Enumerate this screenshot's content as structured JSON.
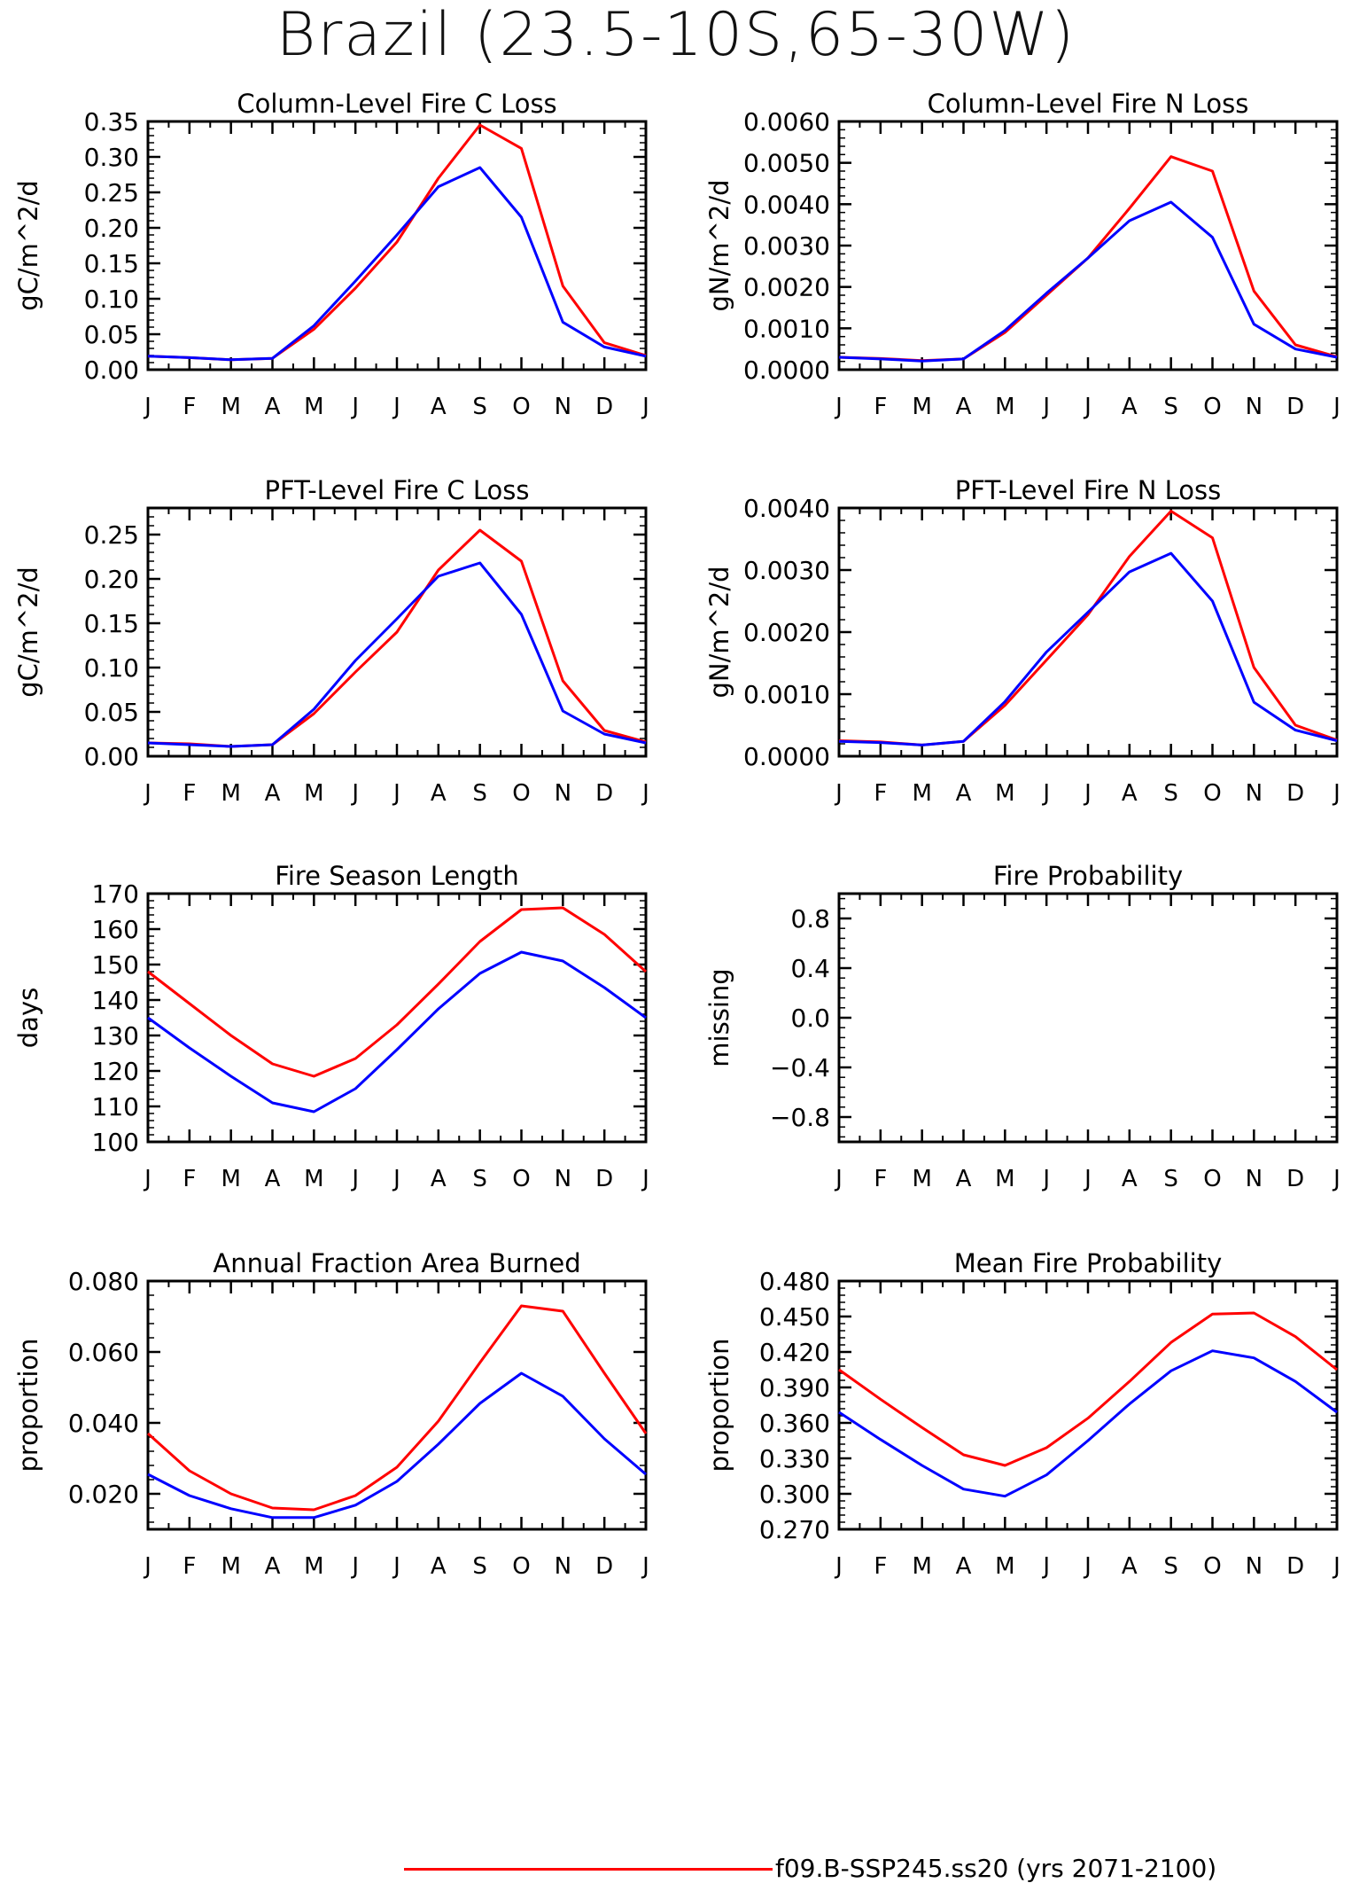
{
  "title": "Brazil (23.5-10S,65-30W)",
  "colors": {
    "series_red": "#ff0000",
    "series_blue": "#0000ff",
    "axis": "#000000"
  },
  "legend": {
    "label": "f09.B-SSP245.ss20 (yrs 2071-2100)",
    "color": "#ff0000"
  },
  "chart_data": [
    {
      "type": "line",
      "title": "Column-Level Fire C Loss",
      "ylabel": "gC/m^2/d",
      "categories": [
        "J",
        "F",
        "M",
        "A",
        "M",
        "J",
        "J",
        "A",
        "S",
        "O",
        "N",
        "D",
        "J"
      ],
      "ylim": [
        0,
        0.35
      ],
      "yticks": [
        "0.00",
        "0.05",
        "0.10",
        "0.15",
        "0.20",
        "0.25",
        "0.30",
        "0.35"
      ],
      "series": [
        {
          "color": "#ff0000",
          "values": [
            0.019,
            0.017,
            0.014,
            0.016,
            0.057,
            0.115,
            0.18,
            0.27,
            0.345,
            0.312,
            0.118,
            0.038,
            0.02
          ]
        },
        {
          "color": "#0000ff",
          "values": [
            0.019,
            0.017,
            0.014,
            0.016,
            0.062,
            0.125,
            0.19,
            0.258,
            0.285,
            0.215,
            0.067,
            0.032,
            0.019
          ]
        }
      ]
    },
    {
      "type": "line",
      "title": "Column-Level Fire N Loss",
      "ylabel": "gN/m^2/d",
      "categories": [
        "J",
        "F",
        "M",
        "A",
        "M",
        "J",
        "J",
        "A",
        "S",
        "O",
        "N",
        "D",
        "J"
      ],
      "ylim": [
        0,
        0.006
      ],
      "yticks": [
        "0.0000",
        "0.0010",
        "0.0020",
        "0.0030",
        "0.0040",
        "0.0050",
        "0.0060"
      ],
      "series": [
        {
          "color": "#ff0000",
          "values": [
            0.0003,
            0.00027,
            0.00022,
            0.00026,
            0.0009,
            0.0018,
            0.0027,
            0.0039,
            0.00515,
            0.0048,
            0.0019,
            0.0006,
            0.00031
          ]
        },
        {
          "color": "#0000ff",
          "values": [
            0.0003,
            0.00026,
            0.00021,
            0.00026,
            0.00095,
            0.00185,
            0.0027,
            0.0036,
            0.00405,
            0.0032,
            0.0011,
            0.0005,
            0.0003
          ]
        }
      ]
    },
    {
      "type": "line",
      "title": "PFT-Level Fire C Loss",
      "ylabel": "gC/m^2/d",
      "categories": [
        "J",
        "F",
        "M",
        "A",
        "M",
        "J",
        "J",
        "A",
        "S",
        "O",
        "N",
        "D",
        "J"
      ],
      "ylim": [
        0,
        0.28
      ],
      "yticks": [
        "0.00",
        "0.05",
        "0.10",
        "0.15",
        "0.20",
        "0.25"
      ],
      "series": [
        {
          "color": "#ff0000",
          "values": [
            0.015,
            0.014,
            0.011,
            0.013,
            0.048,
            0.095,
            0.14,
            0.21,
            0.255,
            0.22,
            0.085,
            0.029,
            0.016
          ]
        },
        {
          "color": "#0000ff",
          "values": [
            0.015,
            0.013,
            0.011,
            0.013,
            0.053,
            0.108,
            0.155,
            0.203,
            0.218,
            0.16,
            0.051,
            0.025,
            0.015
          ]
        }
      ]
    },
    {
      "type": "line",
      "title": "PFT-Level Fire N Loss",
      "ylabel": "gN/m^2/d",
      "categories": [
        "J",
        "F",
        "M",
        "A",
        "M",
        "J",
        "J",
        "A",
        "S",
        "O",
        "N",
        "D",
        "J"
      ],
      "ylim": [
        0,
        0.004
      ],
      "yticks": [
        "0.0000",
        "0.0010",
        "0.0020",
        "0.0030",
        "0.0040"
      ],
      "series": [
        {
          "color": "#ff0000",
          "values": [
            0.00025,
            0.00023,
            0.00018,
            0.00024,
            0.00082,
            0.00155,
            0.00228,
            0.00322,
            0.00395,
            0.00352,
            0.00143,
            0.0005,
            0.00026
          ]
        },
        {
          "color": "#0000ff",
          "values": [
            0.00024,
            0.00022,
            0.00018,
            0.00024,
            0.00088,
            0.00168,
            0.00232,
            0.00297,
            0.00327,
            0.0025,
            0.00087,
            0.00042,
            0.00025
          ]
        }
      ]
    },
    {
      "type": "line",
      "title": "Fire Season Length",
      "ylabel": "days",
      "categories": [
        "J",
        "F",
        "M",
        "A",
        "M",
        "J",
        "J",
        "A",
        "S",
        "O",
        "N",
        "D",
        "J"
      ],
      "ylim": [
        100,
        170
      ],
      "yticks": [
        "100",
        "110",
        "120",
        "130",
        "140",
        "150",
        "160",
        "170"
      ],
      "series": [
        {
          "color": "#ff0000",
          "values": [
            148,
            139,
            130,
            122,
            118.5,
            123.5,
            133,
            144.5,
            156.5,
            165.5,
            166,
            158.5,
            148
          ]
        },
        {
          "color": "#0000ff",
          "values": [
            135,
            126.5,
            118.5,
            111,
            108.5,
            115,
            126,
            137.5,
            147.5,
            153.5,
            151,
            143.5,
            135
          ]
        }
      ]
    },
    {
      "type": "line",
      "title": "Fire Probability",
      "ylabel": "missing",
      "categories": [
        "J",
        "F",
        "M",
        "A",
        "M",
        "J",
        "J",
        "A",
        "S",
        "O",
        "N",
        "D",
        "J"
      ],
      "ylim": [
        -1,
        1
      ],
      "yticks": [
        "-0.8",
        "-0.4",
        "0.0",
        "0.4",
        "0.8"
      ],
      "series": []
    },
    {
      "type": "line",
      "title": "Annual Fraction Area Burned",
      "ylabel": "proportion",
      "categories": [
        "J",
        "F",
        "M",
        "A",
        "M",
        "J",
        "J",
        "A",
        "S",
        "O",
        "N",
        "D",
        "J"
      ],
      "ylim": [
        0.01,
        0.08
      ],
      "yticks": [
        "0.020",
        "0.040",
        "0.060",
        "0.080"
      ],
      "series": [
        {
          "color": "#ff0000",
          "values": [
            0.037,
            0.0265,
            0.02,
            0.016,
            0.0155,
            0.0195,
            0.0275,
            0.0405,
            0.057,
            0.073,
            0.0715,
            0.054,
            0.037
          ]
        },
        {
          "color": "#0000ff",
          "values": [
            0.0255,
            0.0195,
            0.0158,
            0.0133,
            0.0133,
            0.0168,
            0.0235,
            0.034,
            0.0455,
            0.054,
            0.0475,
            0.0355,
            0.0255
          ]
        }
      ]
    },
    {
      "type": "line",
      "title": "Mean Fire Probability",
      "ylabel": "proportion",
      "categories": [
        "J",
        "F",
        "M",
        "A",
        "M",
        "J",
        "J",
        "A",
        "S",
        "O",
        "N",
        "D",
        "J"
      ],
      "ylim": [
        0.27,
        0.48
      ],
      "yticks": [
        "0.270",
        "0.300",
        "0.330",
        "0.360",
        "0.390",
        "0.420",
        "0.450",
        "0.480"
      ],
      "series": [
        {
          "color": "#ff0000",
          "values": [
            0.405,
            0.38,
            0.356,
            0.333,
            0.324,
            0.339,
            0.364,
            0.395,
            0.428,
            0.452,
            0.453,
            0.433,
            0.405
          ]
        },
        {
          "color": "#0000ff",
          "values": [
            0.369,
            0.346,
            0.324,
            0.304,
            0.298,
            0.316,
            0.345,
            0.376,
            0.404,
            0.421,
            0.415,
            0.395,
            0.369
          ]
        }
      ]
    }
  ]
}
